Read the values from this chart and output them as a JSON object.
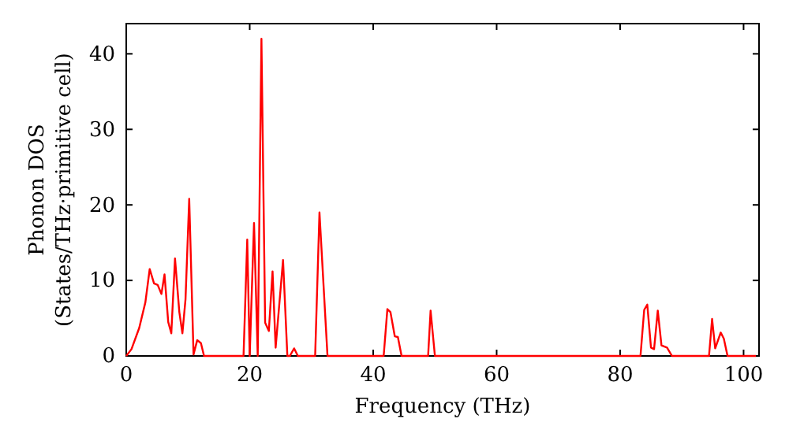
{
  "chart_data": {
    "type": "line",
    "xlabel": "Frequency (THz)",
    "ylabel": "Phonon DOS\n(States/THz·primitive cell)",
    "xlim": [
      0,
      102.5
    ],
    "ylim": [
      0,
      44
    ],
    "xticks": [
      0,
      20,
      40,
      60,
      80,
      100
    ],
    "yticks": [
      0,
      10,
      20,
      30,
      40
    ],
    "grid": false,
    "marker": "none",
    "line_style": "solid",
    "series": [
      {
        "color": "#ff0000",
        "x": [
          0,
          0.85,
          2.1,
          3.1,
          3.8,
          4.5,
          5.1,
          5.7,
          6.2,
          6.8,
          7.3,
          7.9,
          8.6,
          9.1,
          9.6,
          10.2,
          10.9,
          11.5,
          12.1,
          12.6,
          19.0,
          19.6,
          20.0,
          20.7,
          21.3,
          21.9,
          22.5,
          23.1,
          23.7,
          24.2,
          25.4,
          26.1,
          26.5,
          27.2,
          27.8,
          30.6,
          31.3,
          32.6,
          41.7,
          42.3,
          42.8,
          43.5,
          44.0,
          44.6,
          48.9,
          49.3,
          50.0,
          83.3,
          83.9,
          84.4,
          85.0,
          85.5,
          86.1,
          86.7,
          87.6,
          88.4,
          94.4,
          94.9,
          95.4,
          96.3,
          96.8,
          97.4,
          102
        ],
        "values": [
          0,
          0.9,
          3.7,
          7.1,
          11.5,
          9.6,
          9.4,
          8.2,
          10.8,
          4.5,
          3.0,
          12.9,
          5.8,
          3.0,
          7.5,
          20.8,
          0.2,
          2.1,
          1.7,
          0,
          0,
          15.4,
          0,
          17.6,
          0,
          42.0,
          4.4,
          3.3,
          11.2,
          1.1,
          12.7,
          0,
          0,
          1.0,
          0,
          0,
          19.0,
          0,
          0,
          6.2,
          5.8,
          2.6,
          2.5,
          0,
          0,
          6.0,
          0,
          0,
          6.1,
          6.8,
          1.1,
          0.9,
          6.0,
          1.4,
          1.1,
          0,
          0,
          4.9,
          1.0,
          3.1,
          2.3,
          0,
          0
        ]
      }
    ]
  }
}
